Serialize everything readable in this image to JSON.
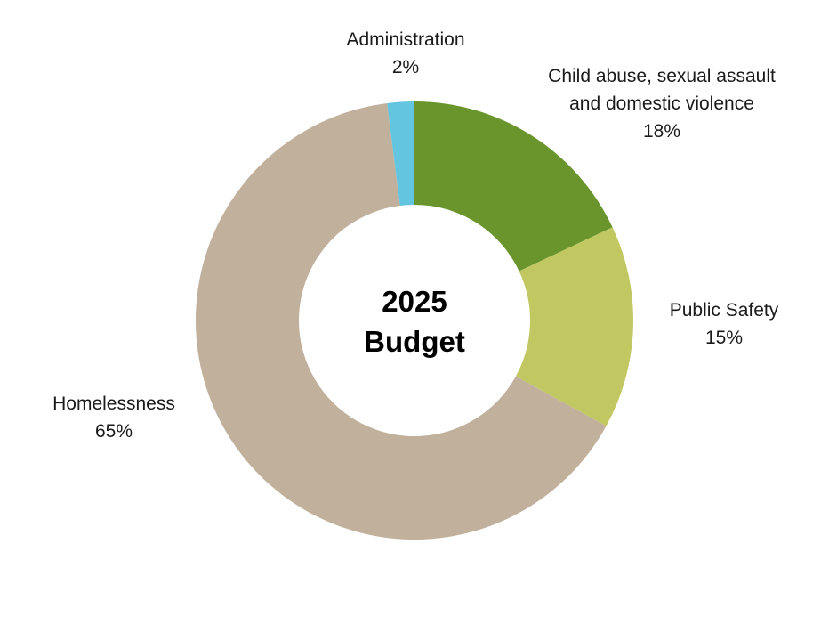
{
  "chart_data": {
    "type": "pie",
    "donut": true,
    "center_label": [
      "2025",
      "Budget"
    ],
    "start_angle_deg": 0,
    "direction": "clockwise",
    "slices": [
      {
        "label_lines": [
          "Child abuse, sexual assault",
          "and domestic violence"
        ],
        "value": 18,
        "value_label": "18%",
        "color": "#6a952d"
      },
      {
        "label_lines": [
          "Public Safety"
        ],
        "value": 15,
        "value_label": "15%",
        "color": "#c1c862"
      },
      {
        "label_lines": [
          "Homelessness"
        ],
        "value": 65,
        "value_label": "65%",
        "color": "#c1b19c"
      },
      {
        "label_lines": [
          "Administration"
        ],
        "value": 2,
        "value_label": "2%",
        "color": "#63c5df"
      }
    ]
  }
}
